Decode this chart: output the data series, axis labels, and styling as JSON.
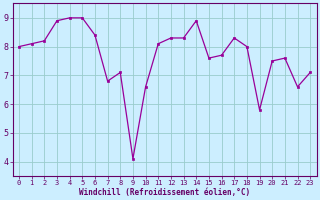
{
  "x": [
    0,
    1,
    2,
    3,
    4,
    5,
    6,
    7,
    8,
    9,
    10,
    11,
    12,
    13,
    14,
    15,
    16,
    17,
    18,
    19,
    20,
    21,
    22,
    23
  ],
  "y": [
    8.0,
    8.1,
    8.2,
    8.9,
    9.0,
    9.0,
    8.4,
    6.8,
    7.1,
    4.1,
    6.6,
    8.1,
    8.3,
    8.3,
    8.9,
    7.6,
    7.7,
    8.3,
    8.0,
    5.8,
    7.5,
    7.6,
    6.6,
    7.1
  ],
  "xlabel": "Windchill (Refroidissement éolien,°C)",
  "ylim": [
    3.5,
    9.5
  ],
  "xlim": [
    -0.5,
    23.5
  ],
  "yticks": [
    4,
    5,
    6,
    7,
    8,
    9
  ],
  "xticks": [
    0,
    1,
    2,
    3,
    4,
    5,
    6,
    7,
    8,
    9,
    10,
    11,
    12,
    13,
    14,
    15,
    16,
    17,
    18,
    19,
    20,
    21,
    22,
    23
  ],
  "line_color": "#990099",
  "marker_color": "#990099",
  "bg_color": "#cceeff",
  "grid_color": "#99cccc",
  "axis_color": "#660066",
  "label_color": "#660066",
  "tick_fontsize": 5.0,
  "xlabel_fontsize": 5.5
}
